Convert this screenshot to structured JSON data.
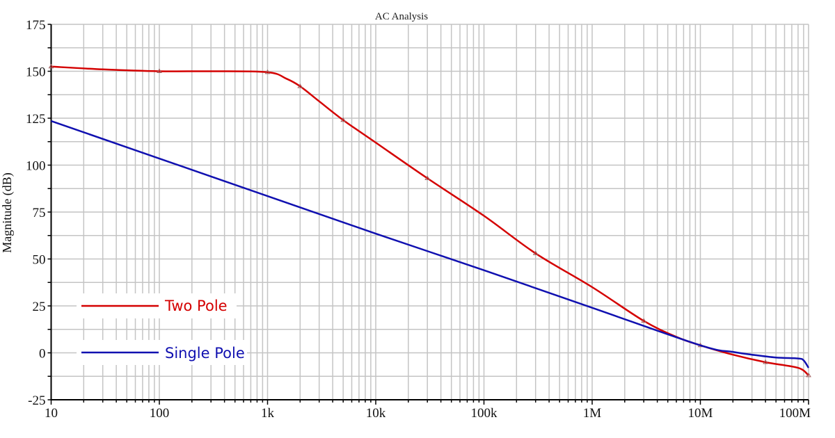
{
  "chart_data": {
    "type": "line",
    "title": "AC Analysis",
    "xlabel": "",
    "ylabel": "Magnitude (dB)",
    "xscale": "log",
    "xlim": [
      10,
      100000000
    ],
    "ylim": [
      -25,
      175
    ],
    "grid": true,
    "legend_position": "bottom-left",
    "x_ticks": [
      {
        "value": 10,
        "label": "10"
      },
      {
        "value": 100,
        "label": "100"
      },
      {
        "value": 1000,
        "label": "1k"
      },
      {
        "value": 10000,
        "label": "10k"
      },
      {
        "value": 100000,
        "label": "100k"
      },
      {
        "value": 1000000,
        "label": "1M"
      },
      {
        "value": 10000000,
        "label": "10M"
      },
      {
        "value": 100000000,
        "label": "100M"
      }
    ],
    "y_ticks": [
      {
        "value": 175,
        "label": "175"
      },
      {
        "value": 150,
        "label": "150"
      },
      {
        "value": 125,
        "label": "125"
      },
      {
        "value": 100,
        "label": "100"
      },
      {
        "value": 75,
        "label": "75"
      },
      {
        "value": 50,
        "label": "50"
      },
      {
        "value": 25,
        "label": "25"
      },
      {
        "value": 0,
        "label": "0"
      },
      {
        "value": -25,
        "label": "-25"
      }
    ],
    "series": [
      {
        "name": "Two Pole",
        "color": "#d40000",
        "x": [
          10,
          30,
          100,
          300,
          1000,
          1500,
          2000,
          3000,
          5000,
          10000,
          30000,
          100000,
          300000,
          1000000,
          3000000,
          6000000,
          10000000,
          20000000,
          40000000,
          80000000,
          100000000
        ],
        "y": [
          152.5,
          151,
          150,
          150,
          149.5,
          146,
          142,
          134,
          124,
          112,
          93,
          73,
          53,
          35,
          17,
          8.5,
          4,
          -1,
          -5,
          -8,
          -12
        ]
      },
      {
        "name": "Single Pole",
        "color": "#1010b0",
        "x": [
          10,
          100,
          1000,
          10000,
          100000,
          1000000,
          10000000,
          20000000,
          30000000,
          50000000,
          80000000,
          90000000,
          100000000
        ],
        "y": [
          123.5,
          103.5,
          83.5,
          63.5,
          44,
          24,
          4,
          0.5,
          -1,
          -2.5,
          -3,
          -4,
          -8
        ]
      }
    ]
  }
}
